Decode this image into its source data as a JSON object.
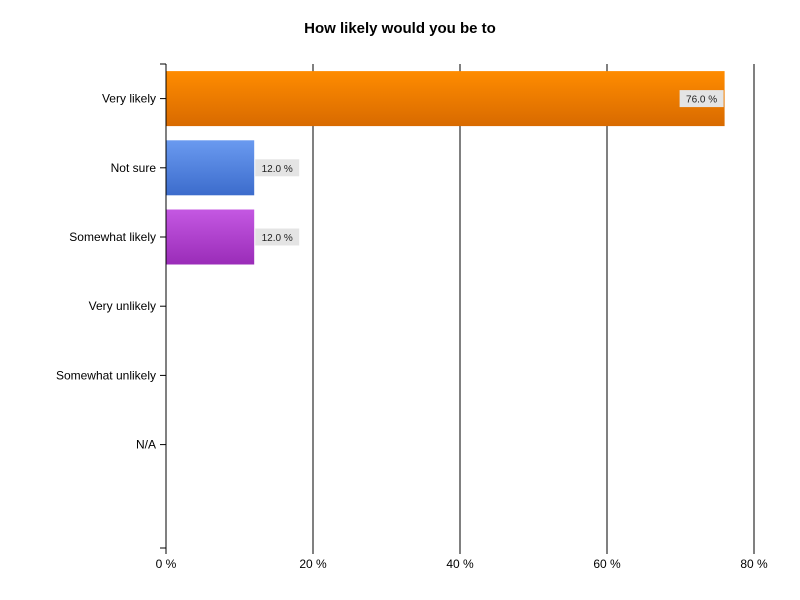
{
  "chart_data": {
    "type": "bar",
    "orientation": "horizontal",
    "title": "How likely would you be to",
    "xlabel": "",
    "ylabel": "",
    "categories": [
      "Very likely",
      "Not sure",
      "Somewhat likely",
      "Very unlikely",
      "Somewhat unlikely",
      "N/A"
    ],
    "values": [
      76.0,
      12.0,
      12.0,
      0,
      0,
      0
    ],
    "data_labels": [
      "76.0 %",
      "12.0 %",
      "12.0 %",
      "",
      "",
      ""
    ],
    "value_unit": "%",
    "xlim": [
      0,
      80
    ],
    "x_ticks": [
      0,
      20,
      40,
      60,
      80
    ],
    "x_tick_labels": [
      "0 %",
      "20 %",
      "40 %",
      "60 %",
      "80 %"
    ],
    "grid": true,
    "legend": "none",
    "colors": {
      "Very likely": [
        "#ff8c00",
        "#d86a00"
      ],
      "Not sure": [
        "#6a9af0",
        "#3c6ccc"
      ],
      "Somewhat likely": [
        "#c458e2",
        "#9a2cb8"
      ]
    }
  }
}
